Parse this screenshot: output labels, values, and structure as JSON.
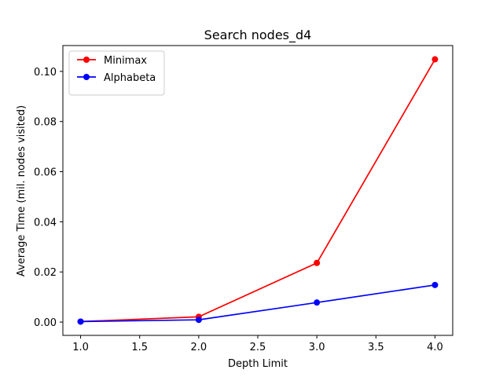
{
  "chart_data": {
    "type": "line",
    "title": "Search nodes_d4",
    "xlabel": "Depth Limit",
    "ylabel": "Average Time (mil. nodes visited)",
    "x": [
      1.0,
      2.0,
      3.0,
      4.0
    ],
    "xlim": [
      0.85,
      4.15
    ],
    "ylim": [
      -0.0053,
      0.1103
    ],
    "xticks": [
      1.0,
      1.5,
      2.0,
      2.5,
      3.0,
      3.5,
      4.0
    ],
    "xtick_labels": [
      "1.0",
      "1.5",
      "2.0",
      "2.5",
      "3.0",
      "3.5",
      "4.0"
    ],
    "yticks": [
      0.0,
      0.02,
      0.04,
      0.06,
      0.08,
      0.1
    ],
    "ytick_labels": [
      "0.00",
      "0.02",
      "0.04",
      "0.06",
      "0.08",
      "0.10"
    ],
    "grid": false,
    "legend_position": "top-left",
    "series": [
      {
        "name": "Minimax",
        "color": "#ff0000",
        "marker": "circle",
        "values": [
          0.0002,
          0.0021,
          0.0236,
          0.1048
        ]
      },
      {
        "name": "Alphabeta",
        "color": "#0000ff",
        "marker": "circle",
        "values": [
          0.0002,
          0.0009,
          0.0078,
          0.0148
        ]
      }
    ]
  }
}
